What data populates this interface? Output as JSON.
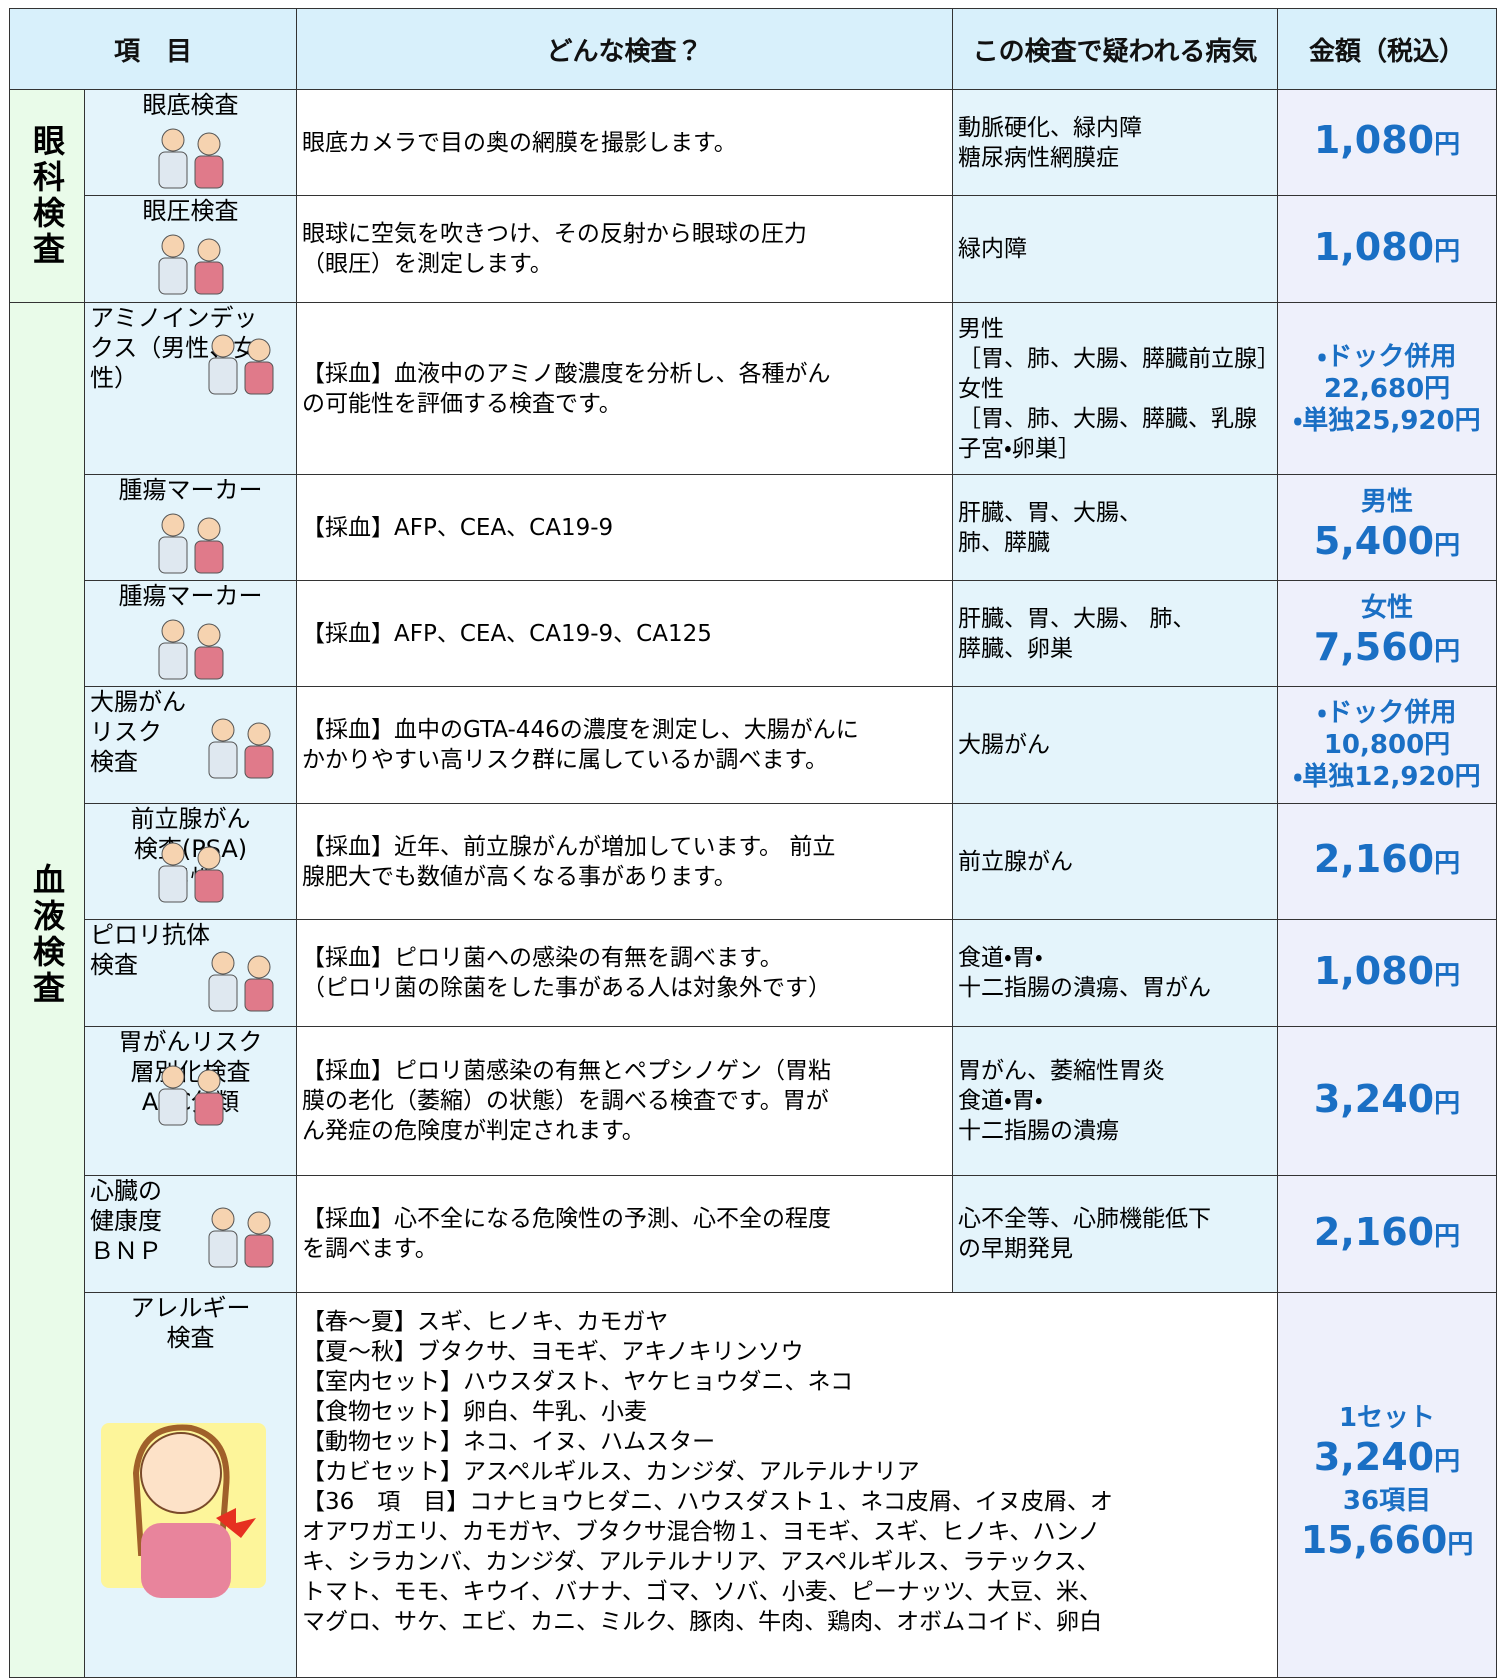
{
  "header": [
    "項　目",
    "どんな検査？",
    "この検査で疑われる病気",
    "金額（税込）"
  ],
  "groups": [
    {
      "label": "眼科検査",
      "rows": [
        {
          "item": [
            "眼底検査"
          ],
          "description": [
            "眼底カメラで目の奥の網膜を撮影します。"
          ],
          "diseases": [
            "動脈硬化、緑内障",
            "糖尿病性網膜症"
          ],
          "price": [
            "1,080円"
          ]
        },
        {
          "item": [
            "眼圧検査"
          ],
          "description": [
            "眼球に空気を吹きつけ、その反射から眼球の圧力",
            "（眼圧）を測定します。"
          ],
          "diseases": [
            "緑内障"
          ],
          "price": [
            "1,080円"
          ]
        }
      ]
    },
    {
      "label": "血液検査",
      "rows": [
        {
          "item": [
            "アミノインデッ",
            "クス（男性、女性）"
          ],
          "description": [
            "【採血】血液中のアミノ酸濃度を分析し、各種がん",
            "の可能性を評価する検査です。"
          ],
          "diseases": [
            "男性",
            "［胃、肺、大腸、膵臓前立腺］",
            "女性",
            "［胃、肺、大腸、膵臓、乳腺",
            "子宮・卵巣］"
          ],
          "price": [
            "・ドック併用",
            "22,680円",
            "・単独25,920円"
          ]
        },
        {
          "item": [
            "腫瘍マーカー"
          ],
          "description": [
            "【採血】AFP、CEA、CA19-9"
          ],
          "diseases": [
            "肝臓、胃、大腸、",
            "肺、膵臓"
          ],
          "price": [
            "男性",
            "5,400円"
          ]
        },
        {
          "item": [
            "腫瘍マーカー"
          ],
          "description": [
            "【採血】AFP、CEA、CA19-9、CA125"
          ],
          "diseases": [
            "肝臓、胃、大腸、 肺、",
            "膵臓、卵巣"
          ],
          "price": [
            "女性",
            "7,560円"
          ]
        },
        {
          "item": [
            "大腸がん",
            "リスク",
            "検査"
          ],
          "description": [
            "【採血】血中のGTA-446の濃度を測定し、大腸がんに",
            "かかりやすい高リスク群に属しているか調べます。"
          ],
          "diseases": [
            "大腸がん"
          ],
          "price": [
            "・ドック併用",
            "10,800円",
            "・単独12,920円"
          ]
        },
        {
          "item": [
            "前立腺がん",
            "検査(PSA)",
            "男性"
          ],
          "description": [
            "【採血】近年、前立腺がんが増加しています。 前立",
            "腺肥大でも数値が高くなる事があります。"
          ],
          "diseases": [
            "前立腺がん"
          ],
          "price": [
            "2,160円"
          ]
        },
        {
          "item": [
            "ピロリ抗体",
            "検査"
          ],
          "description": [
            "【採血】ピロリ菌への感染の有無を調べます。",
            "（ピロリ菌の除菌をした事がある人は対象外です）"
          ],
          "diseases": [
            "食道・胃・",
            "十二指腸の潰瘍、胃がん"
          ],
          "price": [
            "1,080円"
          ]
        },
        {
          "item": [
            "胃がんリスク",
            "層別化検査",
            "ABC分類"
          ],
          "description": [
            "【採血】ピロリ菌感染の有無とペプシノゲン（胃粘",
            "膜の老化（萎縮）の状態）を調べる検査です。胃が",
            "ん発症の危険度が判定されます。"
          ],
          "diseases": [
            "胃がん、萎縮性胃炎",
            "食道・胃・",
            "十二指腸の潰瘍"
          ],
          "price": [
            "3,240円"
          ]
        },
        {
          "item": [
            "心臓の",
            "健康度",
            "ＢＮＰ"
          ],
          "description": [
            "【採血】心不全になる危険性の予測、心不全の程度",
            "を調べます。"
          ],
          "diseases": [
            "心不全等、心肺機能低下",
            "の早期発見"
          ],
          "price": [
            "2,160円"
          ]
        },
        {
          "item": [
            "アレルギー",
            "検査"
          ],
          "description": [
            "【春～夏】スギ、ヒノキ、カモガヤ",
            "【夏～秋】ブタクサ、ヨモギ、アキノキリンソウ",
            "【室内セット】ハウスダスト、ヤケヒョウダニ、ネコ",
            "【食物セット】卵白、牛乳、小麦",
            "【動物セット】ネコ、イヌ、ハムスター",
            "【カビセット】アスペルギルス、カンジダ、アルテルナリア",
            "【36　項　目】コナヒョウヒダニ、ハウスダスト１、ネコ皮屑、イヌ皮屑、オ",
            "オアワガエリ、カモガヤ、ブタクサ混合物１、ヨモギ、スギ、ヒノキ、ハンノ",
            "キ、シラカンバ、カンジダ、アルテルナリア、アスペルギルス、ラテックス、",
            "トマト、モモ、キウイ、バナナ、ゴマ、ソバ、小麦、ピーナッツ、大豆、米、",
            "マグロ、サケ、エビ、カニ、ミルク、豚肉、牛肉、鶏肉、オボムコイド、卵白"
          ],
          "price": [
            "1セット",
            "3,240円",
            "36項目",
            "15,660円"
          ]
        }
      ]
    }
  ]
}
